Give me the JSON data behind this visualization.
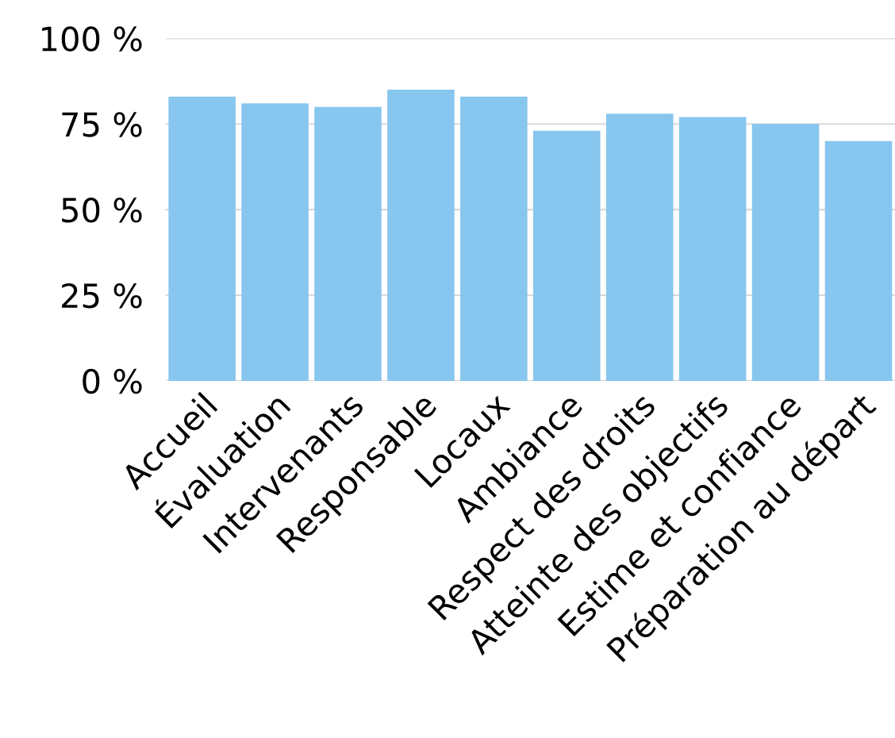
{
  "chart_data": {
    "type": "bar",
    "categories": [
      "Accueil",
      "Évaluation",
      "Intervenants",
      "Responsable",
      "Locaux",
      "Ambiance",
      "Respect des droits",
      "Atteinte des objectifs",
      "Estime et confiance",
      "Préparation au départ"
    ],
    "values": [
      83,
      81,
      80,
      85,
      83,
      73,
      78,
      77,
      75,
      70
    ],
    "color": "#87c6ee",
    "ylim": [
      0,
      100
    ],
    "yticks": [
      {
        "value": 0,
        "label": "0 %"
      },
      {
        "value": 25,
        "label": "25 %"
      },
      {
        "value": 50,
        "label": "50 %"
      },
      {
        "value": 75,
        "label": "75 %"
      },
      {
        "value": 100,
        "label": "100 %"
      }
    ],
    "grid": "y",
    "legend": false
  }
}
